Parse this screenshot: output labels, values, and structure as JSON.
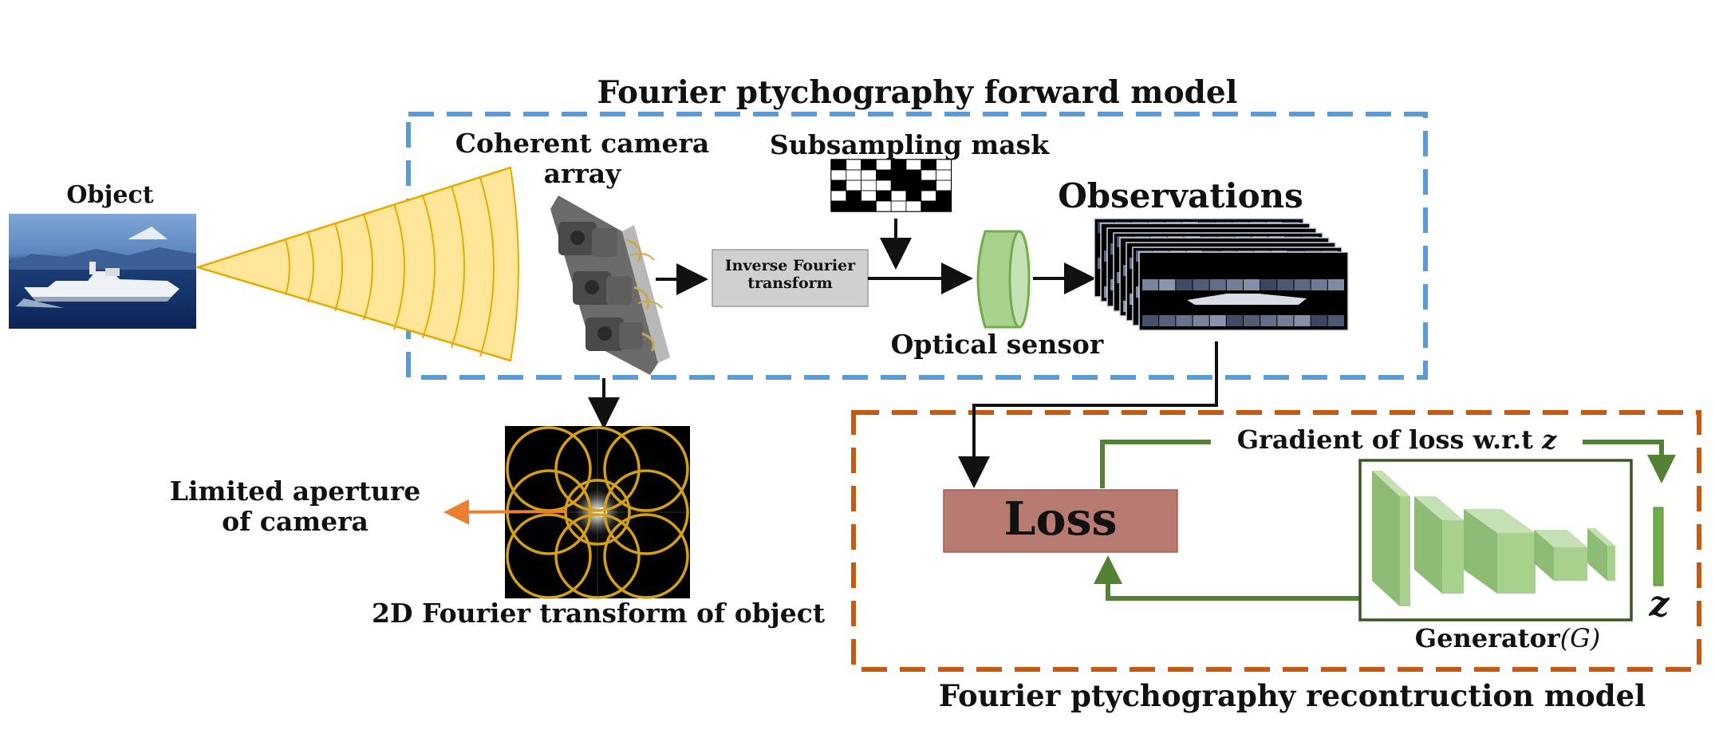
{
  "titles": {
    "forward_model": "Fourier ptychography forward model",
    "reconstruction_model": "Fourier ptychography recontruction model"
  },
  "labels": {
    "object": "Object",
    "camera_array_line1": "Coherent camera",
    "camera_array_line2": "array",
    "subsampling_mask": "Subsampling mask",
    "inverse_fourier_line1": "Inverse Fourier",
    "inverse_fourier_line2": "transform",
    "optical_sensor": "Optical sensor",
    "observations": "Observations",
    "limited_aperture_line1": "Limited aperture",
    "limited_aperture_line2": "of camera",
    "fourier_transform": "2D Fourier transform of object",
    "loss": "Loss",
    "gradient_text": "Gradient of loss w.r.t ",
    "gradient_var": "z",
    "generator_text": "Generator",
    "generator_var": "(G)",
    "latent_z": "z"
  },
  "colors": {
    "forward_box": "#5b9bd5",
    "recon_box": "#c55a11",
    "loss_box": "#b87b72",
    "green_arrow": "#548235",
    "generator_fill": "#a9d18e",
    "aperture_arrow": "#ed7d31",
    "wave_fill": "#ffe699",
    "wave_stroke": "#e8a900",
    "circle_stroke": "#d4a017",
    "ift_box": "#d0d0d0"
  }
}
